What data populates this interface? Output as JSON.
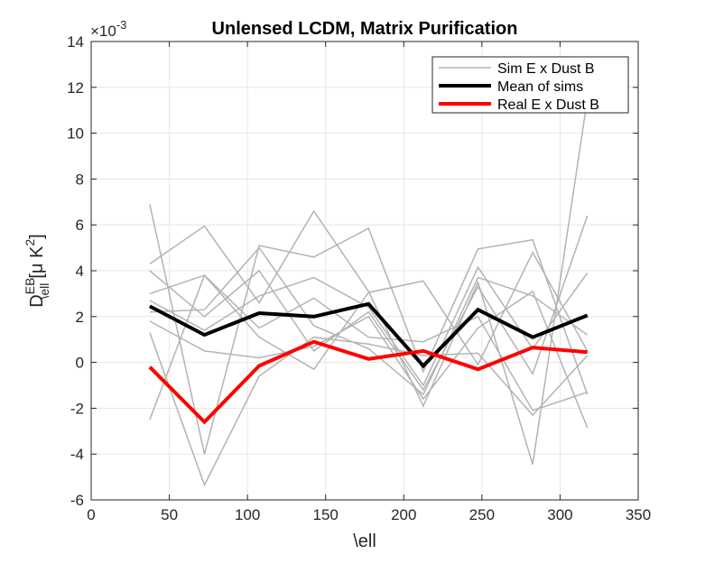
{
  "chart_data": {
    "type": "line",
    "title": "Unlensed LCDM, Matrix Purification",
    "xlabel": "\\ell",
    "ylabel": {
      "base": "D",
      "superscript": "EB",
      "subscript": "\\ell",
      "unit_open": "[",
      "unit_mu": "μ",
      "unit_k": " K",
      "unit_exp": "2",
      "unit_close": "]"
    },
    "y_multiplier": {
      "base": "×10",
      "exponent": "-3"
    },
    "xlim": [
      0,
      350
    ],
    "ylim": [
      -6,
      14
    ],
    "xticks": [
      0,
      50,
      100,
      150,
      200,
      250,
      300,
      350
    ],
    "yticks": [
      -6,
      -4,
      -2,
      0,
      2,
      4,
      6,
      8,
      10,
      12,
      14
    ],
    "grid": true,
    "legend_position": "top-right",
    "x": [
      37.5,
      72.5,
      107.5,
      142.5,
      177.5,
      212.5,
      247.5,
      282.5,
      317.5
    ],
    "colors": {
      "sim": "#b3b3b3",
      "mean": "#000000",
      "real": "#ff0000"
    },
    "series": [
      {
        "name": "Sim E x Dust B",
        "role": "sim",
        "values": [
          6.9,
          -4.0,
          5.1,
          4.6,
          5.85,
          -0.4,
          4.95,
          5.35,
          -1.4
        ]
      },
      {
        "role": "sim",
        "values": [
          4.3,
          5.95,
          2.6,
          6.6,
          3.1,
          -1.9,
          3.5,
          -4.45,
          11.5
        ]
      },
      {
        "role": "sim",
        "values": [
          4.0,
          2.0,
          4.0,
          0.5,
          2.2,
          -1.2,
          3.3,
          -0.5,
          6.4
        ]
      },
      {
        "role": "sim",
        "values": [
          3.0,
          3.8,
          1.1,
          -0.3,
          3.05,
          3.55,
          -0.1,
          4.8,
          0.5
        ]
      },
      {
        "role": "sim",
        "values": [
          2.7,
          1.4,
          2.9,
          3.7,
          2.4,
          -1.0,
          4.15,
          0.6,
          3.9
        ]
      },
      {
        "role": "sim",
        "values": [
          -2.5,
          3.8,
          1.5,
          2.8,
          1.1,
          0.9,
          2.0,
          -2.1,
          -1.3
        ]
      },
      {
        "role": "sim",
        "values": [
          1.8,
          0.5,
          0.2,
          0.7,
          2.0,
          -1.6,
          1.5,
          3.1,
          -2.85
        ]
      },
      {
        "role": "sim",
        "values": [
          1.3,
          -5.35,
          -0.6,
          1.1,
          0.8,
          0.3,
          0.4,
          -2.3,
          0.3
        ]
      },
      {
        "role": "sim",
        "values": [
          2.2,
          2.3,
          5.0,
          1.6,
          0.6,
          -1.4,
          3.7,
          2.9,
          1.2
        ]
      },
      {
        "name": "Mean of sims",
        "role": "mean",
        "values": [
          2.45,
          1.2,
          2.15,
          2.0,
          2.55,
          -0.15,
          2.3,
          1.1,
          2.05
        ]
      },
      {
        "name": "Real E x Dust B",
        "role": "real",
        "values": [
          -0.2,
          -2.6,
          -0.15,
          0.9,
          0.15,
          0.5,
          -0.3,
          0.65,
          0.45
        ]
      }
    ]
  }
}
